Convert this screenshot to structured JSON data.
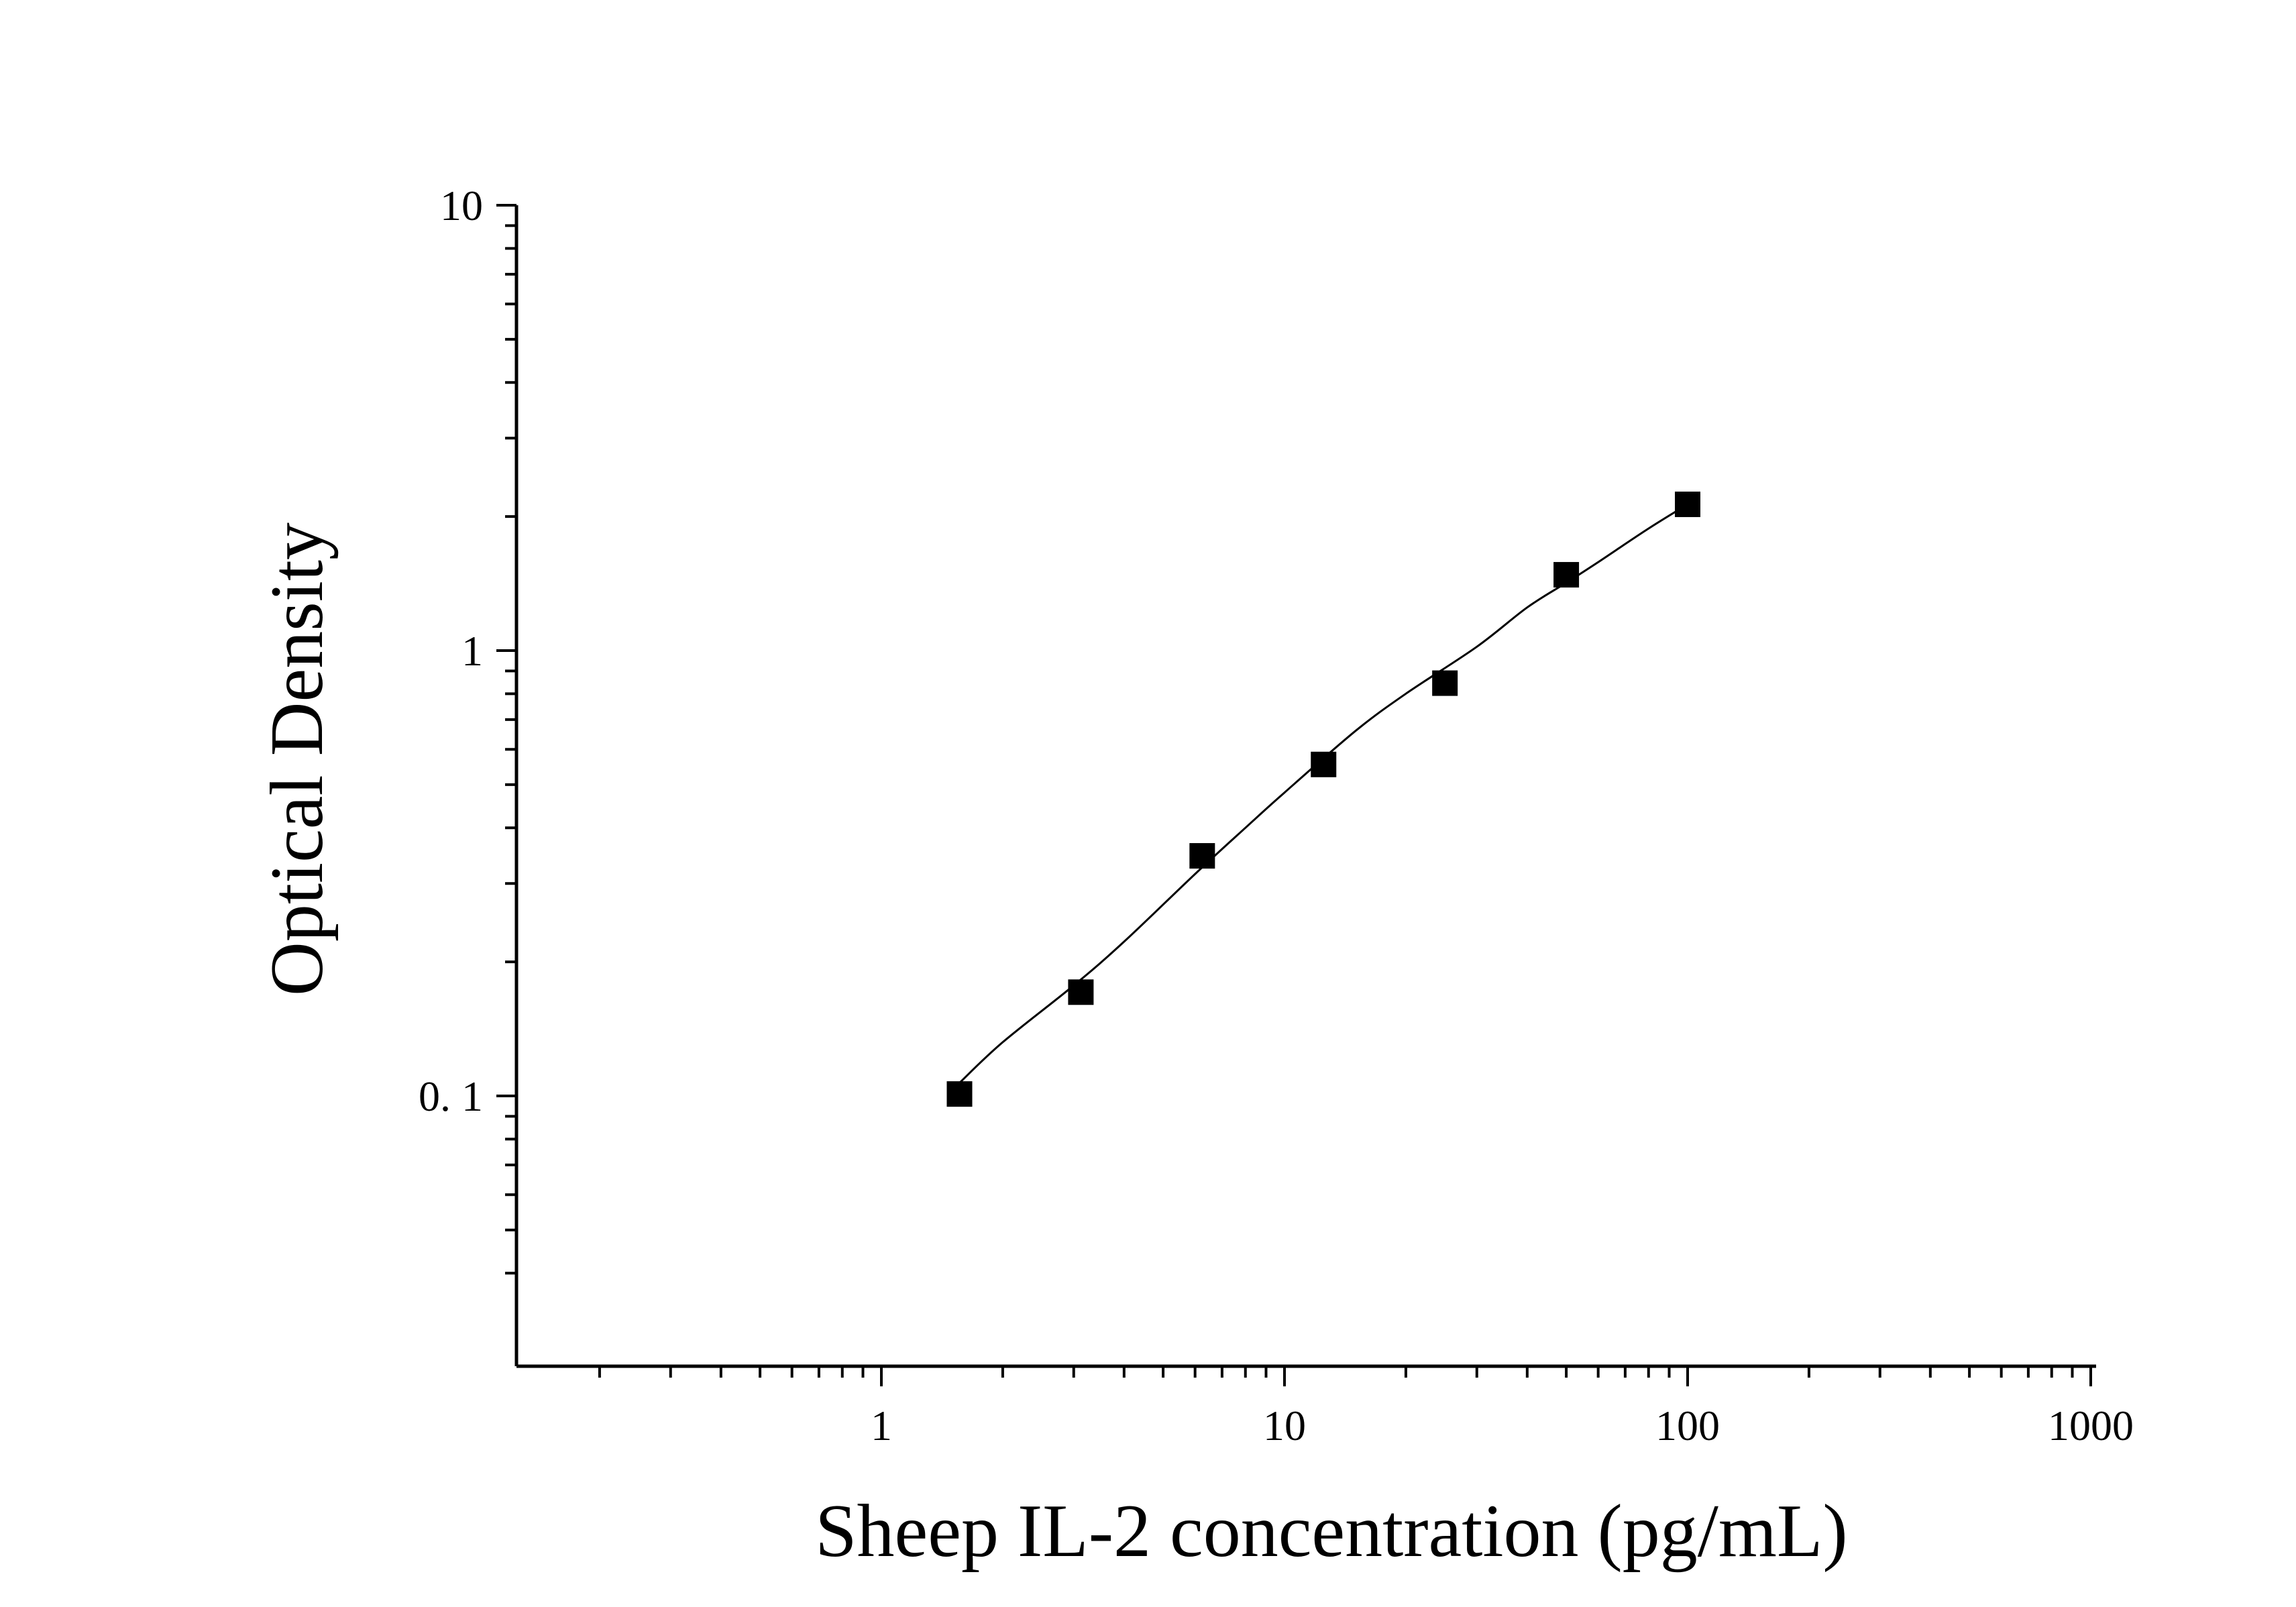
{
  "chart_data": {
    "type": "scatter",
    "title": "",
    "xlabel": "Sheep IL-2 concentration (pg/mL)",
    "ylabel": "Optical Density",
    "x_scale": "log",
    "y_scale": "log",
    "xlim": [
      0.125,
      1000
    ],
    "ylim": [
      0.033,
      10
    ],
    "x_ticks": [
      {
        "value": 1,
        "label": "1"
      },
      {
        "value": 10,
        "label": "10"
      },
      {
        "value": 100,
        "label": "100"
      },
      {
        "value": 1000,
        "label": "1000"
      }
    ],
    "y_ticks": [
      {
        "value": 0.1,
        "label": "0. 1"
      },
      {
        "value": 1,
        "label": "1"
      },
      {
        "value": 10,
        "label": "10"
      }
    ],
    "grid": false,
    "legend": "none",
    "marker": "square",
    "colors": {
      "marker": "#000000",
      "line": "#000000",
      "axis": "#000000"
    },
    "series": [
      {
        "x": [
          1.5625,
          3.125,
          6.25,
          12.5,
          25,
          50,
          100
        ],
        "y": [
          0.101,
          0.171,
          0.346,
          0.555,
          0.845,
          1.48,
          2.13
        ]
      }
    ],
    "fit_curve": {
      "x": [
        1.5625,
        2,
        3,
        4,
        6,
        8,
        10,
        15,
        20,
        30,
        40,
        50,
        60,
        80,
        100
      ],
      "y": [
        0.107,
        0.132,
        0.177,
        0.222,
        0.315,
        0.4,
        0.48,
        0.66,
        0.8,
        1.02,
        1.25,
        1.42,
        1.58,
        1.88,
        2.13
      ]
    }
  }
}
